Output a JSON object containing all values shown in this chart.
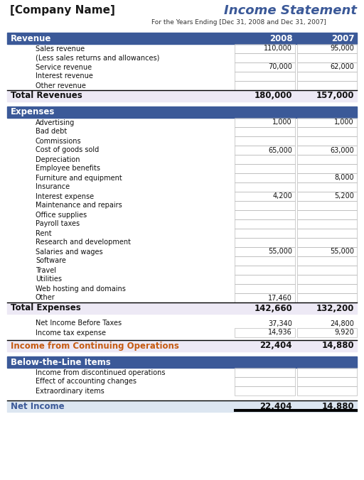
{
  "company_name": "[Company Name]",
  "title": "Income Statement",
  "subtitle": "For the Years Ending [Dec 31, 2008 and Dec 31, 2007]",
  "header_bg": "#3B5998",
  "header_text": "#FFFFFF",
  "total_bg": "#EDE9F5",
  "net_income_bg": "#DCE6F1",
  "white_bg": "#FFFFFF",
  "sections": [
    {
      "type": "header",
      "label": "Revenue",
      "col2": "2008",
      "col3": "2007"
    },
    {
      "type": "row",
      "label": "Sales revenue",
      "col2": "110,000",
      "col3": "95,000"
    },
    {
      "type": "row",
      "label": "(Less sales returns and allowances)",
      "col2": "",
      "col3": ""
    },
    {
      "type": "row",
      "label": "Service revenue",
      "col2": "70,000",
      "col3": "62,000"
    },
    {
      "type": "row",
      "label": "Interest revenue",
      "col2": "",
      "col3": ""
    },
    {
      "type": "row",
      "label": "Other revenue",
      "col2": "",
      "col3": ""
    },
    {
      "type": "total",
      "label": "Total Revenues",
      "col2": "180,000",
      "col3": "157,000"
    },
    {
      "type": "spacer"
    },
    {
      "type": "header",
      "label": "Expenses",
      "col2": "",
      "col3": ""
    },
    {
      "type": "row",
      "label": "Advertising",
      "col2": "1,000",
      "col3": "1,000"
    },
    {
      "type": "row",
      "label": "Bad debt",
      "col2": "",
      "col3": ""
    },
    {
      "type": "row",
      "label": "Commissions",
      "col2": "",
      "col3": ""
    },
    {
      "type": "row",
      "label": "Cost of goods sold",
      "col2": "65,000",
      "col3": "63,000"
    },
    {
      "type": "row",
      "label": "Depreciation",
      "col2": "",
      "col3": ""
    },
    {
      "type": "row",
      "label": "Employee benefits",
      "col2": "",
      "col3": ""
    },
    {
      "type": "row",
      "label": "Furniture and equipment",
      "col2": "",
      "col3": "8,000"
    },
    {
      "type": "row",
      "label": "Insurance",
      "col2": "",
      "col3": ""
    },
    {
      "type": "row",
      "label": "Interest expense",
      "col2": "4,200",
      "col3": "5,200"
    },
    {
      "type": "row",
      "label": "Maintenance and repairs",
      "col2": "",
      "col3": ""
    },
    {
      "type": "row",
      "label": "Office supplies",
      "col2": "",
      "col3": ""
    },
    {
      "type": "row",
      "label": "Payroll taxes",
      "col2": "",
      "col3": ""
    },
    {
      "type": "row",
      "label": "Rent",
      "col2": "",
      "col3": ""
    },
    {
      "type": "row",
      "label": "Research and development",
      "col2": "",
      "col3": ""
    },
    {
      "type": "row",
      "label": "Salaries and wages",
      "col2": "55,000",
      "col3": "55,000"
    },
    {
      "type": "row",
      "label": "Software",
      "col2": "",
      "col3": ""
    },
    {
      "type": "row",
      "label": "Travel",
      "col2": "",
      "col3": ""
    },
    {
      "type": "row",
      "label": "Utilities",
      "col2": "",
      "col3": ""
    },
    {
      "type": "row",
      "label": "Web hosting and domains",
      "col2": "",
      "col3": ""
    },
    {
      "type": "row",
      "label": "Other",
      "col2": "17,460",
      "col3": ""
    },
    {
      "type": "total",
      "label": "Total Expenses",
      "col2": "142,660",
      "col3": "132,200"
    },
    {
      "type": "spacer"
    },
    {
      "type": "row_noborder",
      "label": "Net Income Before Taxes",
      "col2": "37,340",
      "col3": "24,800"
    },
    {
      "type": "row",
      "label": "Income tax expense",
      "col2": "14,936",
      "col3": "9,920"
    },
    {
      "type": "spacer_small"
    },
    {
      "type": "total_orange",
      "label": "Income from Continuing Operations",
      "col2": "22,404",
      "col3": "14,880"
    },
    {
      "type": "spacer"
    },
    {
      "type": "header",
      "label": "Below-the-Line Items",
      "col2": "",
      "col3": ""
    },
    {
      "type": "row",
      "label": "Income from discontinued operations",
      "col2": "",
      "col3": ""
    },
    {
      "type": "row",
      "label": "Effect of accounting changes",
      "col2": "",
      "col3": ""
    },
    {
      "type": "row",
      "label": "Extraordinary items",
      "col2": "",
      "col3": ""
    },
    {
      "type": "spacer"
    },
    {
      "type": "net_income",
      "label": "Net Income",
      "col2": "22,404",
      "col3": "14,880"
    }
  ]
}
